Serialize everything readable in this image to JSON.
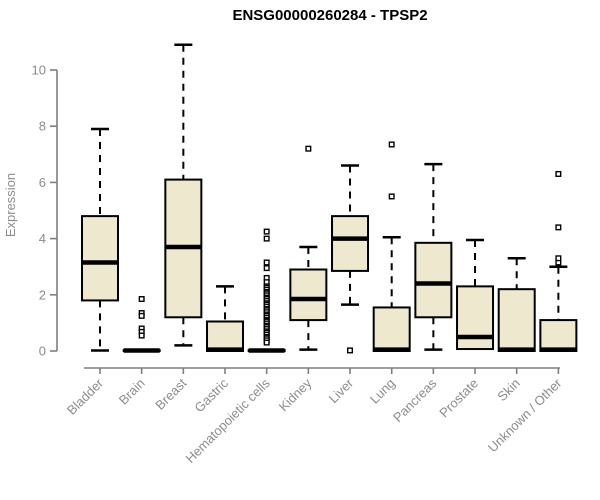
{
  "chart_data": {
    "type": "boxplot",
    "title": "ENSG00000260284 - TPSP2",
    "xlabel": "",
    "ylabel": "Expression",
    "ylim": [
      0,
      10
    ],
    "yticks": [
      0,
      2,
      4,
      6,
      8,
      10
    ],
    "grid": false,
    "categories": [
      "Bladder",
      "Brain",
      "Breast",
      "Gastric",
      "Hematopoietic cells",
      "Kidney",
      "Liver",
      "Lung",
      "Pancreas",
      "Prostate",
      "Skin",
      "Unknown / Other"
    ],
    "boxes": [
      {
        "category": "Bladder",
        "low": 0.02,
        "q1": 1.8,
        "median": 3.15,
        "q3": 4.8,
        "high": 7.9,
        "outliers": []
      },
      {
        "category": "Brain",
        "low": 0,
        "q1": 0,
        "median": 0.02,
        "q3": 0.03,
        "high": 0.03,
        "outliers": [
          1.85,
          1.35,
          1.25,
          0.8,
          0.68,
          0.55
        ]
      },
      {
        "category": "Breast",
        "low": 0.2,
        "q1": 1.2,
        "median": 3.7,
        "q3": 6.1,
        "high": 10.9,
        "outliers": []
      },
      {
        "category": "Gastric",
        "low": 0,
        "q1": 0,
        "median": 0.05,
        "q3": 1.05,
        "high": 2.3,
        "outliers": []
      },
      {
        "category": "Hematopoietic cells",
        "low": 0,
        "q1": 0,
        "median": 0.02,
        "q3": 0.03,
        "high": 0.03,
        "outliers": [
          4.25,
          4.0,
          3.15,
          2.95,
          2.6,
          2.45,
          2.3,
          2.25,
          2.18,
          2.1,
          2.05,
          1.98,
          1.9,
          1.85,
          1.78,
          1.7,
          1.65,
          1.58,
          1.5,
          1.45,
          1.38,
          1.3,
          1.25,
          1.18,
          1.1,
          1.05,
          0.98,
          0.9,
          0.85,
          0.78,
          0.7,
          0.65,
          0.58,
          0.5,
          0.45,
          0.38,
          0.3
        ]
      },
      {
        "category": "Kidney",
        "low": 0.05,
        "q1": 1.1,
        "median": 1.85,
        "q3": 2.9,
        "high": 3.7,
        "outliers": [
          7.2
        ]
      },
      {
        "category": "Liver",
        "low": 1.65,
        "q1": 2.85,
        "median": 4.0,
        "q3": 4.8,
        "high": 6.6,
        "outliers": [
          0.02
        ]
      },
      {
        "category": "Lung",
        "low": 0,
        "q1": 0,
        "median": 0.05,
        "q3": 1.55,
        "high": 4.05,
        "outliers": [
          5.5,
          7.35
        ]
      },
      {
        "category": "Pancreas",
        "low": 0.05,
        "q1": 1.2,
        "median": 2.4,
        "q3": 3.85,
        "high": 6.65,
        "outliers": []
      },
      {
        "category": "Prostate",
        "low": 0.05,
        "q1": 0.07,
        "median": 0.5,
        "q3": 2.3,
        "high": 3.95,
        "outliers": []
      },
      {
        "category": "Skin",
        "low": 0,
        "q1": 0,
        "median": 0.05,
        "q3": 2.2,
        "high": 3.3,
        "outliers": []
      },
      {
        "category": "Unknown / Other",
        "low": 0,
        "q1": 0,
        "median": 0.05,
        "q3": 1.1,
        "high": 3.0,
        "outliers": [
          3.15,
          3.3,
          4.4,
          6.3
        ]
      }
    ],
    "colors": {
      "box_fill": "#EDE8CE",
      "box_border": "#000000",
      "whisker": "#000000",
      "axis": "#7F7F7F",
      "tick_label": "#8C8C8C",
      "title": "#000000",
      "background": "#FFFFFF"
    }
  }
}
